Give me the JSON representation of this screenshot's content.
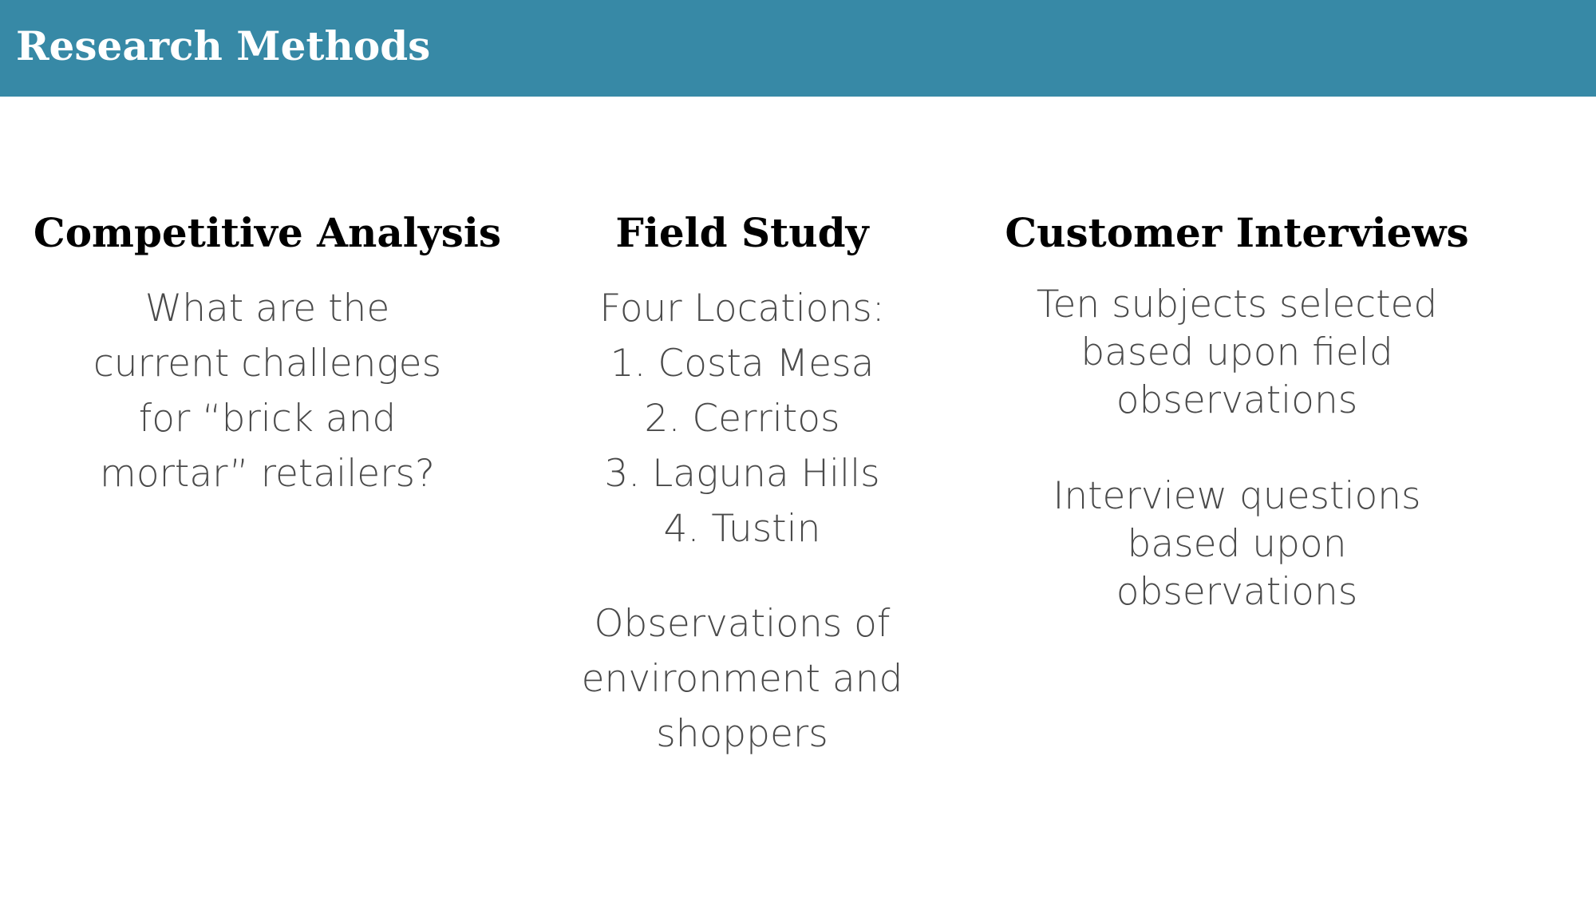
{
  "header": {
    "title": "Research Methods",
    "background_color": "#3789a6"
  },
  "columns": [
    {
      "heading": "Competitive Analysis",
      "paragraphs": [
        "What are the current challenges for “brick and mortar” retailers?"
      ]
    },
    {
      "heading": "Field Study",
      "intro": "Four Locations:",
      "locations": [
        "1. Costa Mesa",
        "2. Cerritos",
        "3. Laguna Hills",
        "4. Tustin"
      ],
      "closing": "Observations of environment and shoppers"
    },
    {
      "heading": "Customer Interviews",
      "paragraphs": [
        "Ten subjects selected based upon field observations",
        "Interview questions based upon observations"
      ]
    }
  ]
}
